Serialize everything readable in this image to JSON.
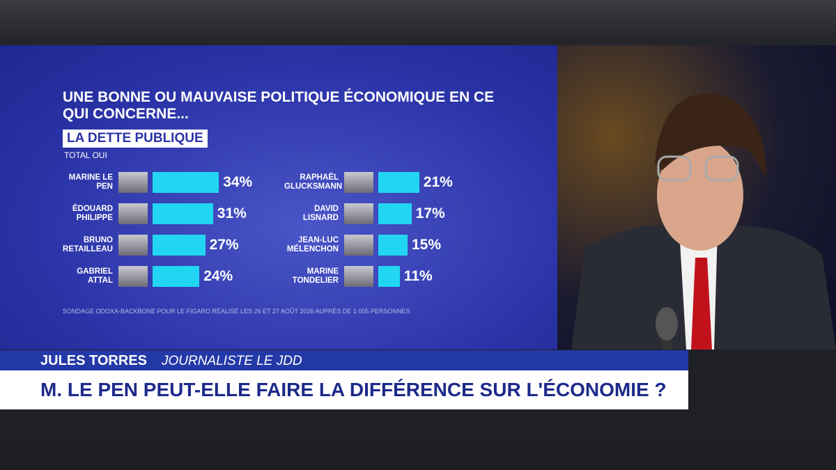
{
  "chart_data": {
    "type": "bar",
    "title": "UNE BONNE OU MAUVAISE POLITIQUE ÉCONOMIQUE EN CE QUI CONCERNE...",
    "subtitle": "LA DETTE PUBLIQUE",
    "measure": "TOTAL OUI",
    "categories": [
      "MARINE LE PEN",
      "ÉDOUARD PHILIPPE",
      "BRUNO RETAILLEAU",
      "GABRIEL ATTAL",
      "RAPHAËL GLUCKSMANN",
      "DAVID LISNARD",
      "JEAN-LUC MÉLENCHON",
      "MARINE TONDELIER"
    ],
    "values": [
      34,
      31,
      27,
      24,
      21,
      17,
      15,
      11
    ],
    "value_labels": [
      "34%",
      "31%",
      "27%",
      "24%",
      "21%",
      "17%",
      "15%",
      "11%"
    ],
    "color": "#22d5f2",
    "source": "SONDAGE ODOXA-BACKBONE POUR LE FIGARO RÉALISÉ LES 26 ET 27 AOÛT 2026 AUPRÈS DE 1 005 PERSONNES"
  },
  "lower_third": {
    "name": "JULES TORRES",
    "role": "JOURNALISTE LE JDD",
    "headline": "M. LE PEN PEUT-ELLE FAIRE LA DIFFÉRENCE SUR L'ÉCONOMIE ?"
  }
}
